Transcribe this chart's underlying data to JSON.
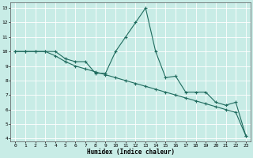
{
  "xlabel": "Humidex (Indice chaleur)",
  "xlim": [
    -0.5,
    23.5
  ],
  "ylim": [
    3.8,
    13.4
  ],
  "xticks": [
    0,
    1,
    2,
    3,
    4,
    5,
    6,
    7,
    8,
    9,
    10,
    11,
    12,
    13,
    14,
    15,
    16,
    17,
    18,
    19,
    20,
    21,
    22,
    23
  ],
  "yticks": [
    4,
    5,
    6,
    7,
    8,
    9,
    10,
    11,
    12,
    13
  ],
  "bg_color": "#c8ece6",
  "line_color": "#1f6b5e",
  "grid_color": "#ffffff",
  "line1_x": [
    0,
    1,
    2,
    3,
    4,
    5,
    6,
    7,
    8,
    9,
    10,
    11,
    12,
    13,
    14,
    15,
    16,
    17,
    18,
    19,
    20,
    21,
    22,
    23
  ],
  "line1_y": [
    10,
    10,
    10,
    10,
    10,
    9.5,
    9.3,
    9.3,
    8.5,
    8.5,
    10,
    11,
    12,
    13,
    10,
    8.2,
    8.3,
    7.2,
    7.2,
    7.2,
    6.5,
    6.3,
    6.5,
    4.2
  ],
  "line2_x": [
    0,
    1,
    2,
    3,
    4,
    5,
    6,
    7,
    8,
    9,
    10,
    11,
    12,
    13,
    14,
    15,
    16,
    17,
    18,
    19,
    20,
    21,
    22,
    23
  ],
  "line2_y": [
    10,
    10,
    10,
    10,
    9.7,
    9.3,
    9.0,
    8.8,
    8.6,
    8.4,
    8.2,
    8.0,
    7.8,
    7.6,
    7.4,
    7.2,
    7.0,
    6.8,
    6.6,
    6.4,
    6.2,
    6.0,
    5.8,
    4.2
  ]
}
